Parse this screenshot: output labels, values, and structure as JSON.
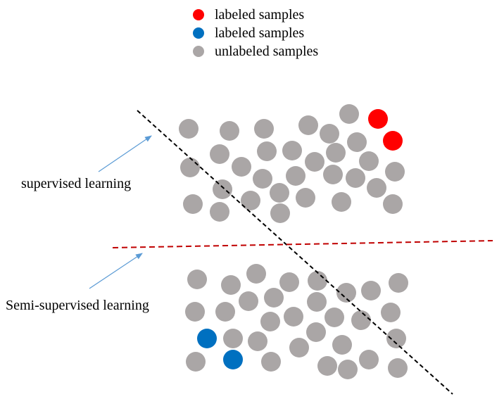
{
  "legend": [
    {
      "label": "labeled samples",
      "color": "#ff0000"
    },
    {
      "label": "labeled samples",
      "color": "#0070c0"
    },
    {
      "label": "unlabeled samples",
      "color": "#aaa6a6"
    }
  ],
  "annotations": {
    "supervised": "supervised learning",
    "semi_supervised": "Semi-supervised learning"
  },
  "colors": {
    "unlabeled": "#aaa6a6",
    "labeled_red": "#ff0000",
    "labeled_blue": "#0070c0",
    "supervised_boundary": "#000000",
    "semi_supervised_boundary": "#c00000",
    "arrow": "#5b9bd5"
  },
  "boundaries": [
    {
      "name": "supervised-boundary",
      "style": "dashed",
      "color": "#000000"
    },
    {
      "name": "semi-supervised-boundary",
      "style": "dashed",
      "color": "#c00000"
    }
  ]
}
